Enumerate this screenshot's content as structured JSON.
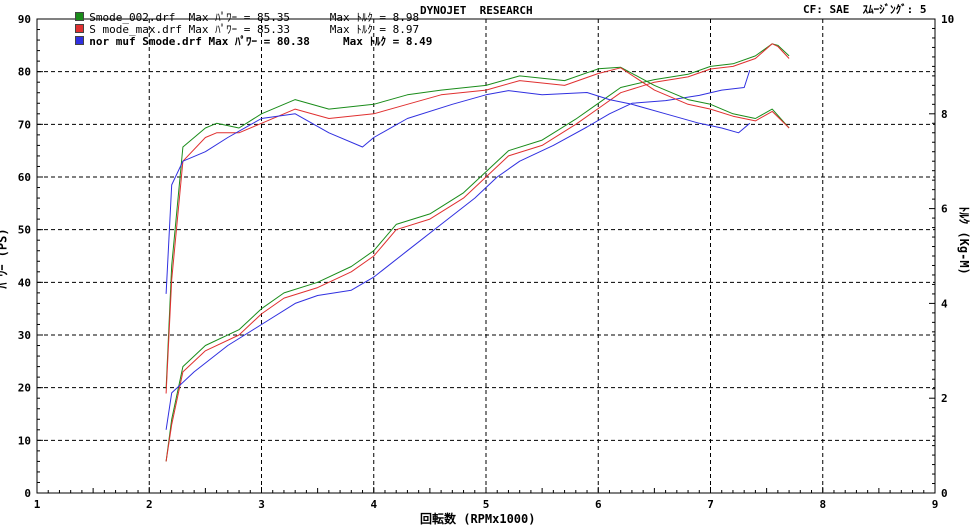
{
  "header": {
    "title": "DYNOJET  RESEARCH",
    "cf": "CF: SAE",
    "smoothing_label": "ｽﾑｰｼﾞﾝｸﾞ:",
    "smoothing_value": "5"
  },
  "legend": [
    {
      "text": "Smode_002.drf  Max ﾊﾟﾜｰ = 85.35      Max ﾄﾙｸ = 8.98",
      "color": "#1a8c1a"
    },
    {
      "text": "S mode_max.drf Max ﾊﾟﾜｰ = 85.33      Max ﾄﾙｸ = 8.97",
      "color": "#e03030"
    },
    {
      "text": "nor muf Smode.drf Max ﾊﾟﾜｰ = 80.38     Max ﾄﾙｸ = 8.49",
      "color": "#3030e0"
    }
  ],
  "chart_data": {
    "type": "line",
    "title": "DYNOJET  RESEARCH",
    "xlabel": "回転数 (RPMx1000)",
    "ylabel": "ﾊﾟﾜｰ (PS)",
    "y2label": "ﾄﾙｸ (Kg-M)",
    "xlim": [
      1,
      9
    ],
    "ylim": [
      0,
      90
    ],
    "y2lim": [
      0,
      10
    ],
    "x_ticks": [
      1,
      2,
      3,
      4,
      5,
      6,
      7,
      8,
      9
    ],
    "y_ticks": [
      0,
      10,
      20,
      30,
      40,
      50,
      60,
      70,
      80,
      90
    ],
    "y2_ticks": [
      0,
      2,
      4,
      6,
      8,
      10
    ],
    "grid": true,
    "legend_position": "top-left",
    "series": [
      {
        "name": "Smode_002.drf",
        "kind": "power",
        "axis": "left",
        "color": "#1a8c1a",
        "x": [
          2.15,
          2.2,
          2.3,
          2.5,
          2.8,
          3.0,
          3.2,
          3.5,
          3.8,
          4.0,
          4.2,
          4.5,
          4.8,
          5.0,
          5.2,
          5.5,
          5.8,
          6.0,
          6.2,
          6.5,
          6.8,
          7.0,
          7.2,
          7.4,
          7.55,
          7.6,
          7.7
        ],
        "y": [
          6,
          14,
          24,
          28,
          31,
          35,
          38,
          40,
          43,
          46,
          51,
          53,
          57,
          61,
          65,
          67,
          71,
          74,
          77,
          78.5,
          79.5,
          81,
          81.5,
          83,
          85.3,
          85,
          83
        ]
      },
      {
        "name": "S mode_max.drf",
        "kind": "power",
        "axis": "left",
        "color": "#e03030",
        "x": [
          2.15,
          2.2,
          2.3,
          2.5,
          2.8,
          3.0,
          3.2,
          3.5,
          3.8,
          4.0,
          4.2,
          4.5,
          4.8,
          5.0,
          5.2,
          5.5,
          5.8,
          6.0,
          6.2,
          6.5,
          6.8,
          7.0,
          7.2,
          7.4,
          7.55,
          7.6,
          7.7
        ],
        "y": [
          6,
          13,
          23,
          27,
          30,
          34,
          37,
          39,
          42,
          45,
          50,
          52,
          56,
          60,
          64,
          66,
          70,
          73,
          76,
          78,
          79,
          80.5,
          81,
          82.5,
          85.3,
          84.8,
          82.5
        ]
      },
      {
        "name": "nor muf Smode.drf",
        "kind": "power",
        "axis": "left",
        "color": "#3030e0",
        "x": [
          2.15,
          2.2,
          2.4,
          2.7,
          3.0,
          3.3,
          3.5,
          3.8,
          4.0,
          4.3,
          4.6,
          4.9,
          5.1,
          5.3,
          5.6,
          5.9,
          6.1,
          6.3,
          6.6,
          6.9,
          7.1,
          7.3,
          7.35
        ],
        "y": [
          12,
          19,
          23,
          28,
          32,
          36,
          37.5,
          38.5,
          41,
          46,
          51,
          56,
          60,
          63,
          66,
          69.5,
          72,
          74,
          74.5,
          75.5,
          76.5,
          77,
          80.3
        ]
      },
      {
        "name": "Smode_002.drf",
        "kind": "torque",
        "axis": "right",
        "color": "#1a8c1a",
        "x": [
          2.15,
          2.2,
          2.3,
          2.5,
          2.6,
          2.8,
          3.0,
          3.3,
          3.6,
          4.0,
          4.3,
          4.6,
          5.0,
          5.3,
          5.7,
          6.0,
          6.2,
          6.5,
          6.8,
          7.0,
          7.2,
          7.4,
          7.55,
          7.7
        ],
        "y": [
          2.2,
          4.8,
          7.3,
          7.7,
          7.8,
          7.7,
          8.0,
          8.3,
          8.1,
          8.2,
          8.4,
          8.5,
          8.6,
          8.8,
          8.7,
          8.95,
          8.98,
          8.6,
          8.3,
          8.2,
          8.0,
          7.9,
          8.1,
          7.7
        ]
      },
      {
        "name": "S mode_max.drf",
        "kind": "torque",
        "axis": "right",
        "color": "#e03030",
        "x": [
          2.15,
          2.2,
          2.3,
          2.5,
          2.6,
          2.8,
          3.0,
          3.3,
          3.6,
          4.0,
          4.3,
          4.6,
          5.0,
          5.3,
          5.7,
          6.0,
          6.2,
          6.5,
          6.8,
          7.0,
          7.2,
          7.4,
          7.55,
          7.7
        ],
        "y": [
          2.1,
          4.5,
          7.0,
          7.5,
          7.6,
          7.6,
          7.8,
          8.1,
          7.9,
          8.0,
          8.2,
          8.4,
          8.5,
          8.7,
          8.6,
          8.85,
          8.97,
          8.5,
          8.2,
          8.1,
          7.95,
          7.85,
          8.05,
          7.7
        ]
      },
      {
        "name": "nor muf Smode.drf",
        "kind": "torque",
        "axis": "right",
        "color": "#3030e0",
        "x": [
          2.15,
          2.2,
          2.3,
          2.5,
          2.7,
          3.0,
          3.3,
          3.6,
          3.9,
          4.0,
          4.3,
          4.7,
          5.0,
          5.2,
          5.5,
          5.9,
          6.1,
          6.3,
          6.6,
          6.9,
          7.1,
          7.25,
          7.35
        ],
        "y": [
          4.2,
          6.5,
          7.0,
          7.2,
          7.5,
          7.9,
          8.0,
          7.6,
          7.3,
          7.5,
          7.9,
          8.2,
          8.4,
          8.49,
          8.4,
          8.45,
          8.3,
          8.2,
          8.0,
          7.8,
          7.7,
          7.6,
          7.8
        ]
      }
    ]
  }
}
